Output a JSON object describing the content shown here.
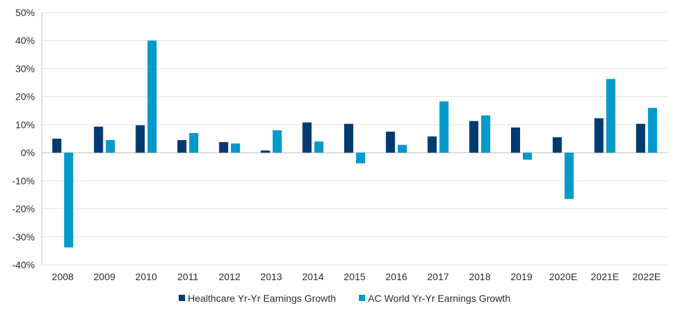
{
  "chart_data": {
    "type": "bar",
    "title": "",
    "xlabel": "",
    "ylabel": "",
    "categories": [
      "2008",
      "2009",
      "2010",
      "2011",
      "2012",
      "2013",
      "2014",
      "2015",
      "2016",
      "2017",
      "2018",
      "2019",
      "2020E",
      "2021E",
      "2022E"
    ],
    "series": [
      {
        "name": "Healthcare Yr-Yr Earnings Growth",
        "color": "#003A70",
        "values": [
          5.0,
          9.3,
          9.8,
          4.5,
          3.8,
          0.8,
          10.8,
          10.3,
          7.5,
          5.8,
          11.3,
          9.0,
          5.5,
          12.3,
          10.3
        ]
      },
      {
        "name": "AC World Yr-Yr Earnings Growth",
        "color": "#0099CC",
        "values": [
          -33.8,
          4.5,
          40.0,
          7.0,
          3.3,
          8.0,
          4.0,
          -3.8,
          2.8,
          18.3,
          13.3,
          -2.5,
          -16.5,
          26.3,
          16.0
        ]
      }
    ],
    "ylim": [
      -40,
      50
    ],
    "yticks": [
      -40,
      -30,
      -20,
      -10,
      0,
      10,
      20,
      30,
      40,
      50
    ],
    "ytick_labels": [
      "-40%",
      "-30%",
      "-20%",
      "-10%",
      "0%",
      "10%",
      "20%",
      "30%",
      "40%",
      "50%"
    ],
    "grid": true,
    "legend_position": "bottom"
  }
}
